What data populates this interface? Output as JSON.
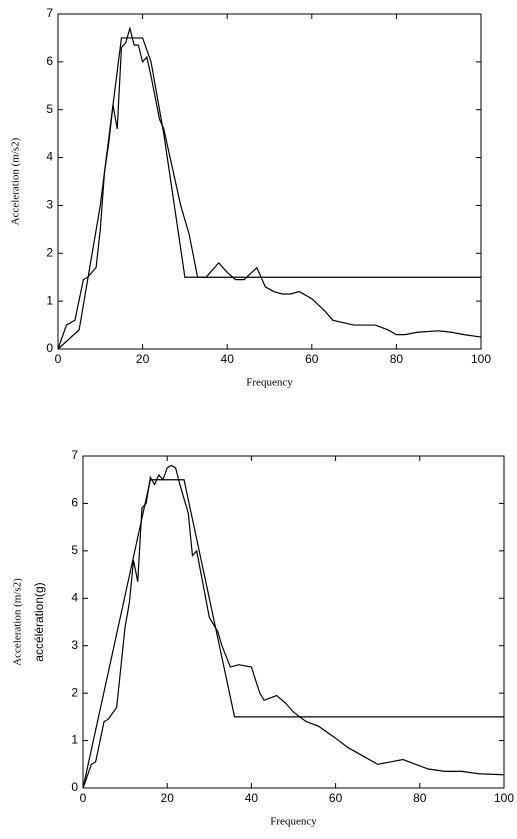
{
  "chart_data": [
    {
      "type": "line",
      "ylabel": "Acceleration (m/s2)",
      "xlabel": "Frequency",
      "xlim": [
        0,
        100
      ],
      "ylim": [
        0,
        7
      ],
      "xticks": [
        0,
        20,
        40,
        60,
        80,
        100
      ],
      "yticks": [
        0,
        1,
        2,
        3,
        4,
        5,
        6,
        7
      ],
      "series": [
        {
          "color": "#000000",
          "x": [
            0,
            5,
            10,
            15,
            20,
            22,
            25,
            30,
            100
          ],
          "values": [
            0,
            0.4,
            3,
            6.5,
            6.5,
            6,
            4.5,
            1.5,
            1.5
          ]
        },
        {
          "color": "#000000",
          "x": [
            0,
            2,
            4,
            6,
            7,
            9,
            10,
            11,
            12,
            13,
            14,
            15,
            16,
            17,
            18,
            19,
            20,
            21,
            22,
            24,
            25,
            27,
            29,
            31,
            33,
            35,
            36,
            38,
            40,
            42,
            44,
            47,
            49,
            51,
            53,
            55,
            57,
            60,
            63,
            65,
            70,
            75,
            78,
            80,
            82,
            85,
            90,
            93,
            96,
            100
          ],
          "values": [
            0,
            0.5,
            0.6,
            1.45,
            1.5,
            1.7,
            2.5,
            3.7,
            4.3,
            5.1,
            4.6,
            6.3,
            6.4,
            6.7,
            6.35,
            6.35,
            6.0,
            6.1,
            5.7,
            4.8,
            4.6,
            3.8,
            3.0,
            2.4,
            1.5,
            1.5,
            1.6,
            1.8,
            1.6,
            1.45,
            1.45,
            1.7,
            1.3,
            1.2,
            1.15,
            1.15,
            1.2,
            1.05,
            0.8,
            0.6,
            0.5,
            0.5,
            0.4,
            0.3,
            0.3,
            0.35,
            0.38,
            0.35,
            0.3,
            0.25
          ]
        }
      ]
    },
    {
      "type": "line",
      "ylabel": "Acceleration (m/s2)",
      "ylabel2": "accélération(g)",
      "xlabel": "Frequency",
      "xlim": [
        0,
        100
      ],
      "ylim": [
        0,
        7
      ],
      "xticks": [
        0,
        20,
        40,
        60,
        80,
        100
      ],
      "yticks": [
        0,
        1,
        2,
        3,
        4,
        5,
        6,
        7
      ],
      "series": [
        {
          "color": "#000000",
          "x": [
            0,
            16,
            24,
            36,
            100
          ],
          "values": [
            0,
            6.5,
            6.5,
            1.5,
            1.5
          ]
        },
        {
          "color": "#000000",
          "x": [
            0,
            2,
            3,
            5,
            6,
            8,
            10,
            11,
            12,
            13,
            14,
            15,
            16,
            17,
            18,
            19,
            20,
            21,
            22,
            23,
            25,
            26,
            27,
            30,
            32,
            33,
            35,
            37,
            40,
            42,
            43,
            46,
            48,
            50,
            53,
            56,
            60,
            63,
            66,
            70,
            73,
            76,
            79,
            82,
            86,
            90,
            94,
            100
          ],
          "values": [
            0,
            0.5,
            0.55,
            1.4,
            1.45,
            1.7,
            3.4,
            3.9,
            4.8,
            4.35,
            5.9,
            6.0,
            6.55,
            6.4,
            6.6,
            6.5,
            6.75,
            6.8,
            6.75,
            6.4,
            5.8,
            4.9,
            5.0,
            3.6,
            3.3,
            3.0,
            2.55,
            2.6,
            2.55,
            2.0,
            1.85,
            1.95,
            1.8,
            1.6,
            1.4,
            1.3,
            1.05,
            0.85,
            0.7,
            0.5,
            0.55,
            0.6,
            0.5,
            0.4,
            0.35,
            0.35,
            0.3,
            0.28
          ]
        }
      ]
    }
  ]
}
